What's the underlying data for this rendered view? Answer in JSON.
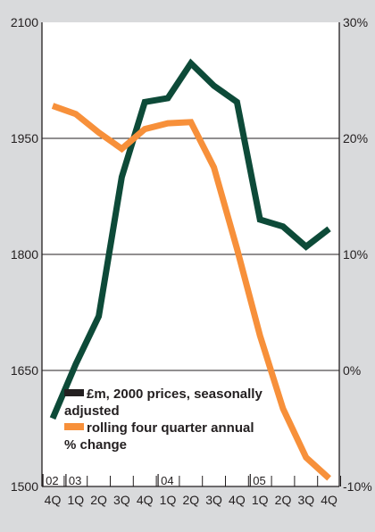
{
  "chart_data": {
    "type": "line",
    "categories": [
      "4Q",
      "1Q",
      "2Q",
      "3Q",
      "4Q",
      "1Q",
      "2Q",
      "3Q",
      "4Q",
      "1Q",
      "2Q",
      "3Q",
      "4Q"
    ],
    "year_labels": [
      {
        "label": "02",
        "from": 0,
        "to": 0
      },
      {
        "label": "03",
        "from": 1,
        "to": 4
      },
      {
        "label": "04",
        "from": 5,
        "to": 8
      },
      {
        "label": "05",
        "from": 9,
        "to": 12
      }
    ],
    "left_axis": {
      "ylim": [
        1500,
        2100
      ],
      "ticks": [
        1500,
        1650,
        1800,
        1950,
        2100
      ]
    },
    "right_axis": {
      "ylim": [
        -10,
        30
      ],
      "ticks": [
        -10,
        0,
        10,
        20,
        30
      ],
      "tick_labels": [
        "-10%",
        "0%",
        "10%",
        "20%",
        "30%"
      ]
    },
    "grid": true,
    "series": [
      {
        "name": "£m, 2000 prices, seasonally adjusted",
        "axis": "left",
        "color": "#0d4a38",
        "values": [
          1588,
          1658,
          1720,
          1900,
          1997,
          2002,
          2047,
          2018,
          1997,
          1845,
          1836,
          1810,
          1833
        ]
      },
      {
        "name": "rolling four quarter annual % change",
        "axis": "right",
        "color": "#f7903a",
        "values": [
          22.8,
          22.1,
          20.5,
          19.1,
          20.8,
          21.3,
          21.4,
          17.5,
          10.5,
          3.0,
          -3.3,
          -7.5,
          -9.3
        ]
      }
    ],
    "legend": {
      "placement": "bottom-left",
      "entries": [
        {
          "lines": [
            "£m, 2000 prices, seasonally",
            "adjusted"
          ],
          "swatch_color": "#231f20"
        },
        {
          "lines": [
            "rolling four quarter annual",
            "% change"
          ],
          "swatch_color": "#f7903a"
        }
      ]
    }
  }
}
